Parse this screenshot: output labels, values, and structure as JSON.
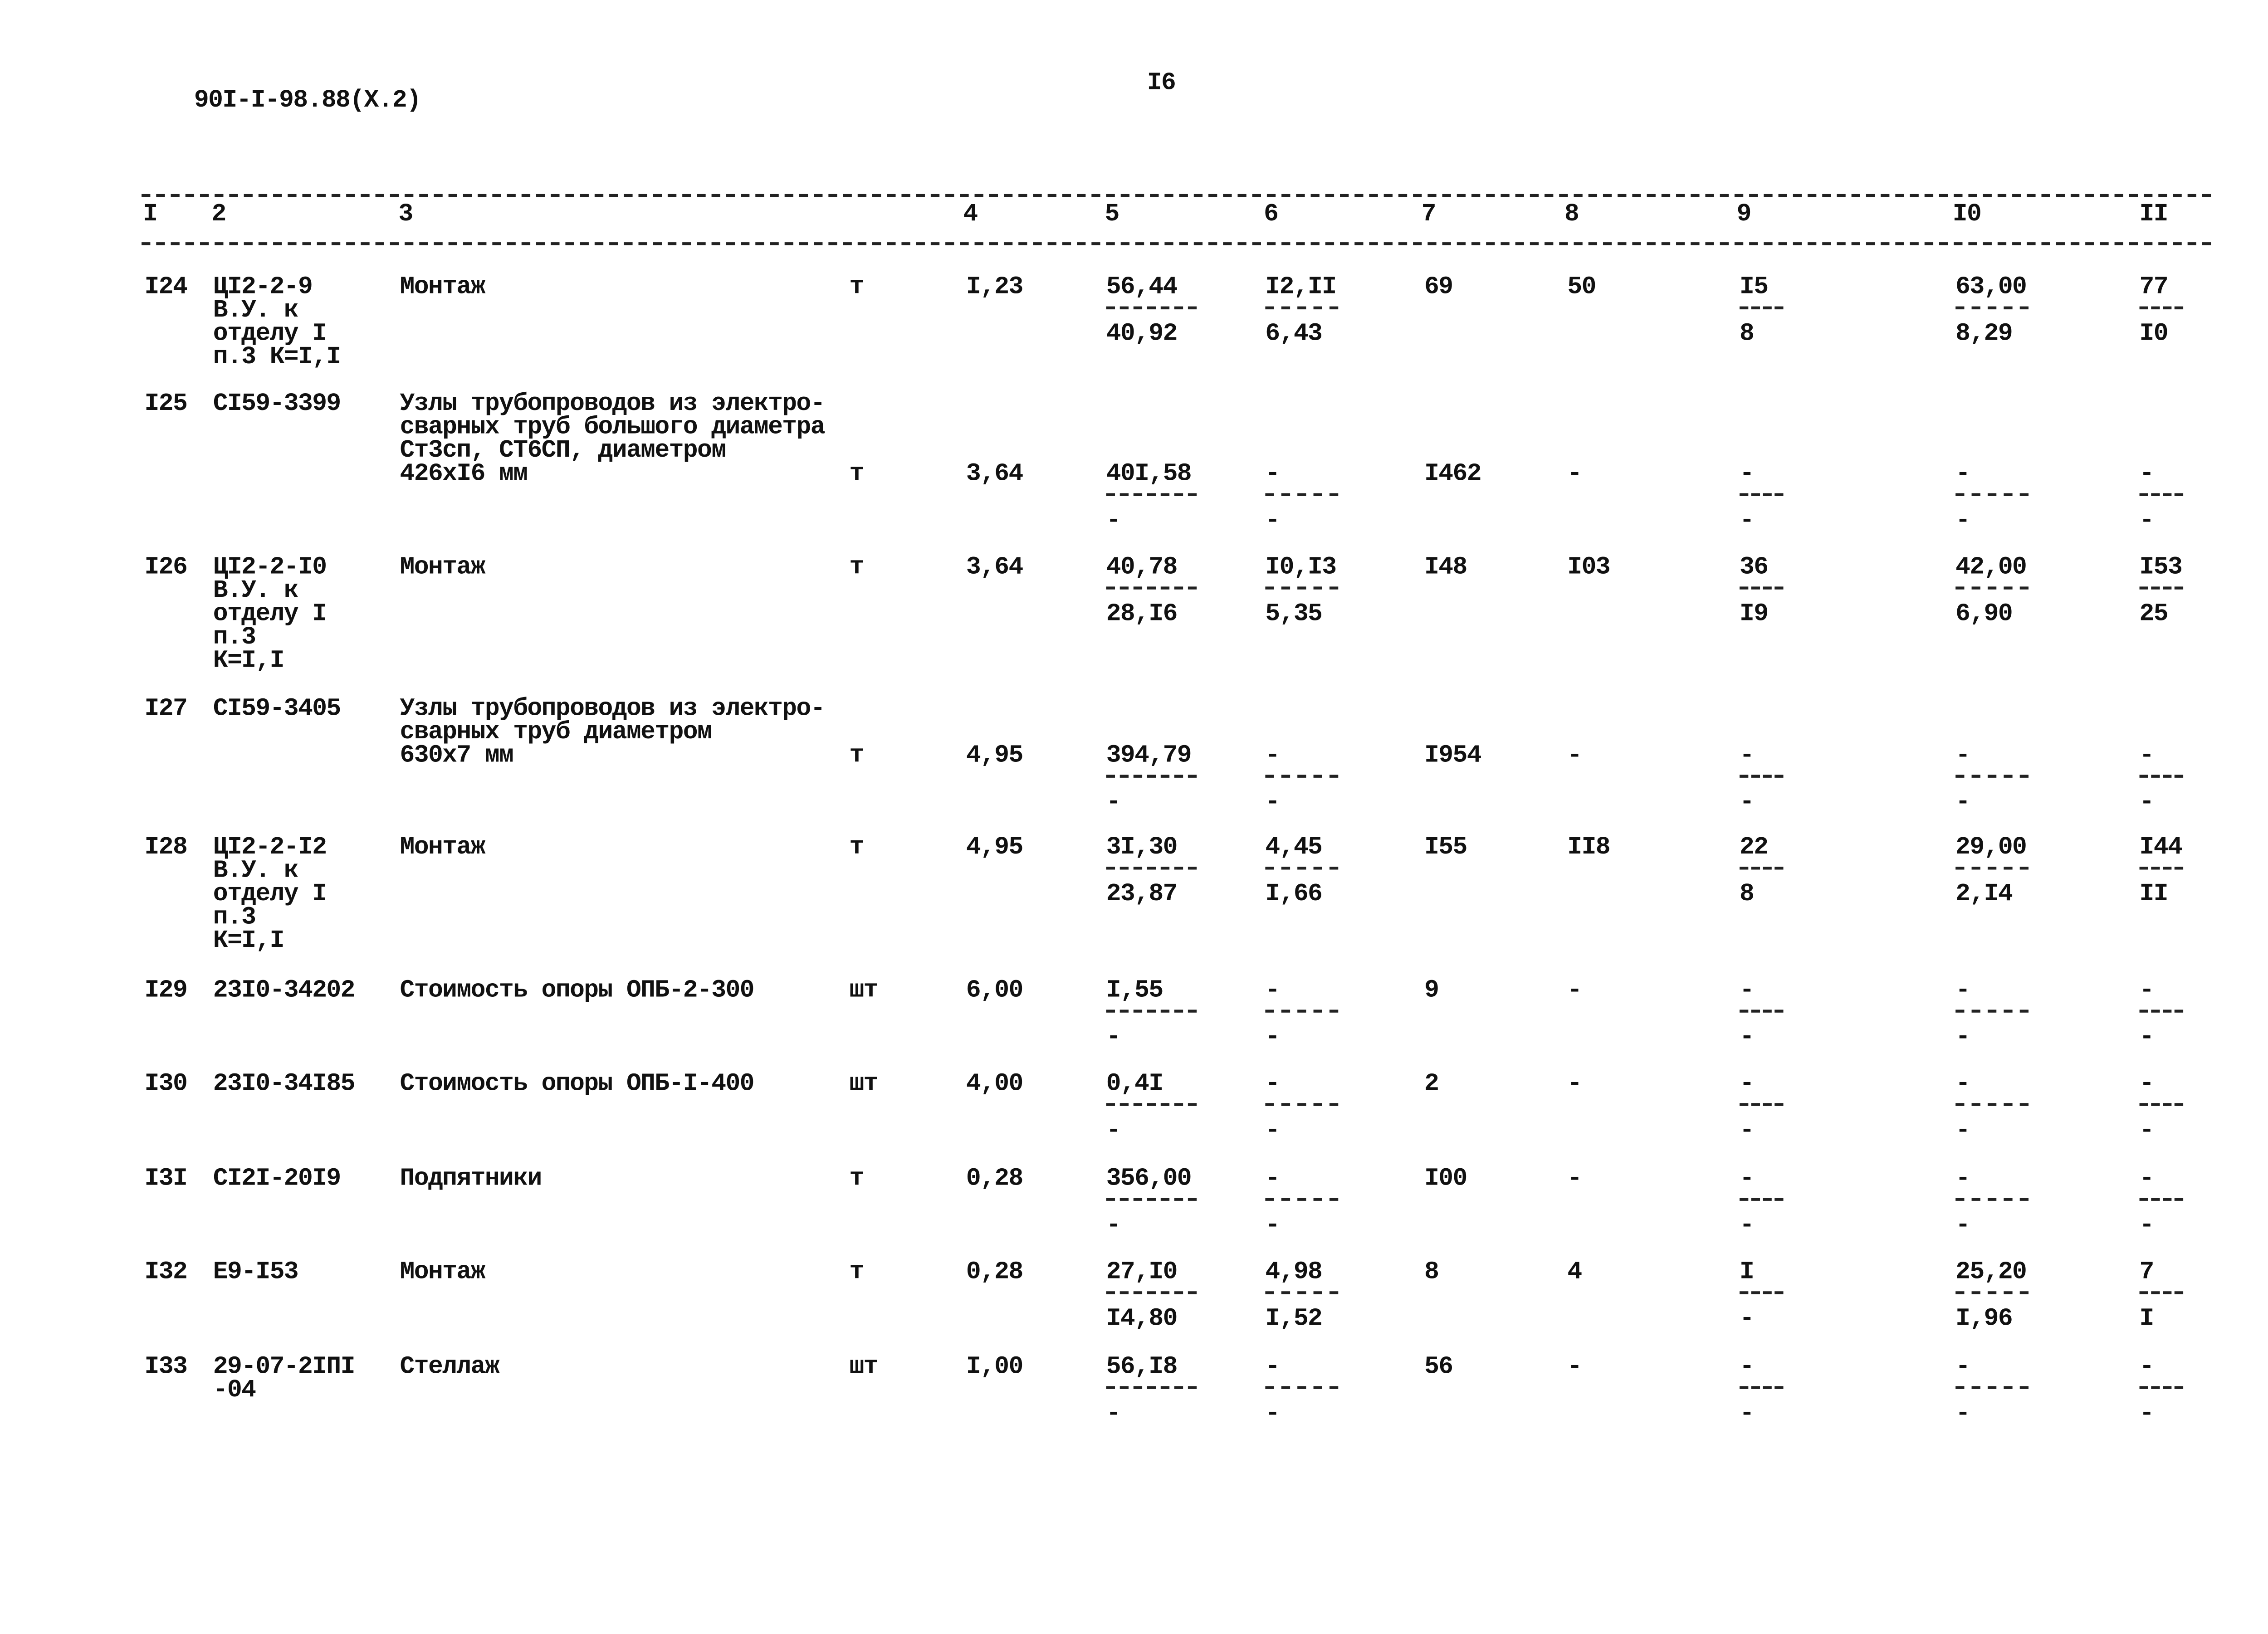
{
  "doc_code": "90I-I-98.88(X.2)",
  "page_number": "I6",
  "headers": [
    "I",
    "2",
    "3",
    "4",
    "5",
    "6",
    "7",
    "8",
    "9",
    "I0",
    "II"
  ],
  "rows": [
    {
      "num": "I24",
      "code": [
        "ЦI2-2-9",
        "В.У. к",
        "отделу I",
        "п.3 К=I,I"
      ],
      "name": [
        "Монтаж"
      ],
      "unit": "т",
      "qty": "I,23",
      "c5": [
        "56,44",
        "40,92"
      ],
      "c6": [
        "I2,II",
        "6,43"
      ],
      "c7": "69",
      "c8": "50",
      "c9": [
        "I5",
        "8"
      ],
      "c10": [
        "63,00",
        "8,29"
      ],
      "c11": [
        "77",
        "I0"
      ]
    },
    {
      "num": "I25",
      "code": [
        "CI59-3399"
      ],
      "name": [
        "Узлы трубопроводов из электро-",
        "сварных труб большого диаметра",
        "Ст3сп, СТ6СП, диаметром",
        "426xI6 мм"
      ],
      "unit": "т",
      "qty": "3,64",
      "c5": [
        "40I,58",
        "-"
      ],
      "c6": [
        "-",
        "-"
      ],
      "c7": "I462",
      "c8": "-",
      "c9": [
        "-",
        "-"
      ],
      "c10": [
        "-",
        "-"
      ],
      "c11": [
        "-",
        "-"
      ]
    },
    {
      "num": "I26",
      "code": [
        "ЦI2-2-I0",
        "В.У. к",
        "отделу I",
        "п.3",
        "К=I,I"
      ],
      "name": [
        "Монтаж"
      ],
      "unit": "т",
      "qty": "3,64",
      "c5": [
        "40,78",
        "28,I6"
      ],
      "c6": [
        "I0,I3",
        "5,35"
      ],
      "c7": "I48",
      "c8": "I03",
      "c9": [
        "36",
        "I9"
      ],
      "c10": [
        "42,00",
        "6,90"
      ],
      "c11": [
        "I53",
        "25"
      ]
    },
    {
      "num": "I27",
      "code": [
        "CI59-3405"
      ],
      "name": [
        "Узлы трубопроводов из электро-",
        "сварных труб диаметром",
        "630x7 мм"
      ],
      "unit": "т",
      "qty": "4,95",
      "c5": [
        "394,79",
        "-"
      ],
      "c6": [
        "-",
        "-"
      ],
      "c7": "I954",
      "c8": "-",
      "c9": [
        "-",
        "-"
      ],
      "c10": [
        "-",
        "-"
      ],
      "c11": [
        "-",
        "-"
      ]
    },
    {
      "num": "I28",
      "code": [
        "ЦI2-2-I2",
        "В.У. к",
        "отделу I",
        "п.3",
        "К=I,I"
      ],
      "name": [
        "Монтаж"
      ],
      "unit": "т",
      "qty": "4,95",
      "c5": [
        "3I,30",
        "23,87"
      ],
      "c6": [
        "4,45",
        "I,66"
      ],
      "c7": "I55",
      "c8": "II8",
      "c9": [
        "22",
        "8"
      ],
      "c10": [
        "29,00",
        "2,I4"
      ],
      "c11": [
        "I44",
        "II"
      ]
    },
    {
      "num": "I29",
      "code": [
        "23I0-34202"
      ],
      "name": [
        "Стоимость опоры ОПБ-2-300"
      ],
      "unit": "шт",
      "qty": "6,00",
      "c5": [
        "I,55",
        "-"
      ],
      "c6": [
        "-",
        "-"
      ],
      "c7": "9",
      "c8": "-",
      "c9": [
        "-",
        "-"
      ],
      "c10": [
        "-",
        "-"
      ],
      "c11": [
        "-",
        "-"
      ]
    },
    {
      "num": "I30",
      "code": [
        "23I0-34I85"
      ],
      "name": [
        "Стоимость опоры ОПБ-I-400"
      ],
      "unit": "шт",
      "qty": "4,00",
      "c5": [
        "0,4I",
        "-"
      ],
      "c6": [
        "-",
        "-"
      ],
      "c7": "2",
      "c8": "-",
      "c9": [
        "-",
        "-"
      ],
      "c10": [
        "-",
        "-"
      ],
      "c11": [
        "-",
        "-"
      ]
    },
    {
      "num": "I3I",
      "code": [
        "CI2I-20I9"
      ],
      "name": [
        "Подпятники"
      ],
      "unit": "т",
      "qty": "0,28",
      "c5": [
        "356,00",
        "-"
      ],
      "c6": [
        "-",
        "-"
      ],
      "c7": "I00",
      "c8": "-",
      "c9": [
        "-",
        "-"
      ],
      "c10": [
        "-",
        "-"
      ],
      "c11": [
        "-",
        "-"
      ]
    },
    {
      "num": "I32",
      "code": [
        "Е9-I53"
      ],
      "name": [
        "Монтаж"
      ],
      "unit": "т",
      "qty": "0,28",
      "c5": [
        "27,I0",
        "I4,80"
      ],
      "c6": [
        "4,98",
        "I,52"
      ],
      "c7": "8",
      "c8": "4",
      "c9": [
        "I",
        "-"
      ],
      "c10": [
        "25,20",
        "I,96"
      ],
      "c11": [
        "7",
        "I"
      ]
    },
    {
      "num": "I33",
      "code": [
        "29-07-2IПI",
        "-04"
      ],
      "name": [
        "Стеллаж"
      ],
      "unit": "шт",
      "qty": "I,00",
      "c5": [
        "56,I8",
        "-"
      ],
      "c6": [
        "-",
        "-"
      ],
      "c7": "56",
      "c8": "-",
      "c9": [
        "-",
        "-"
      ],
      "c10": [
        "-",
        "-"
      ],
      "c11": [
        "-",
        "-"
      ]
    }
  ]
}
